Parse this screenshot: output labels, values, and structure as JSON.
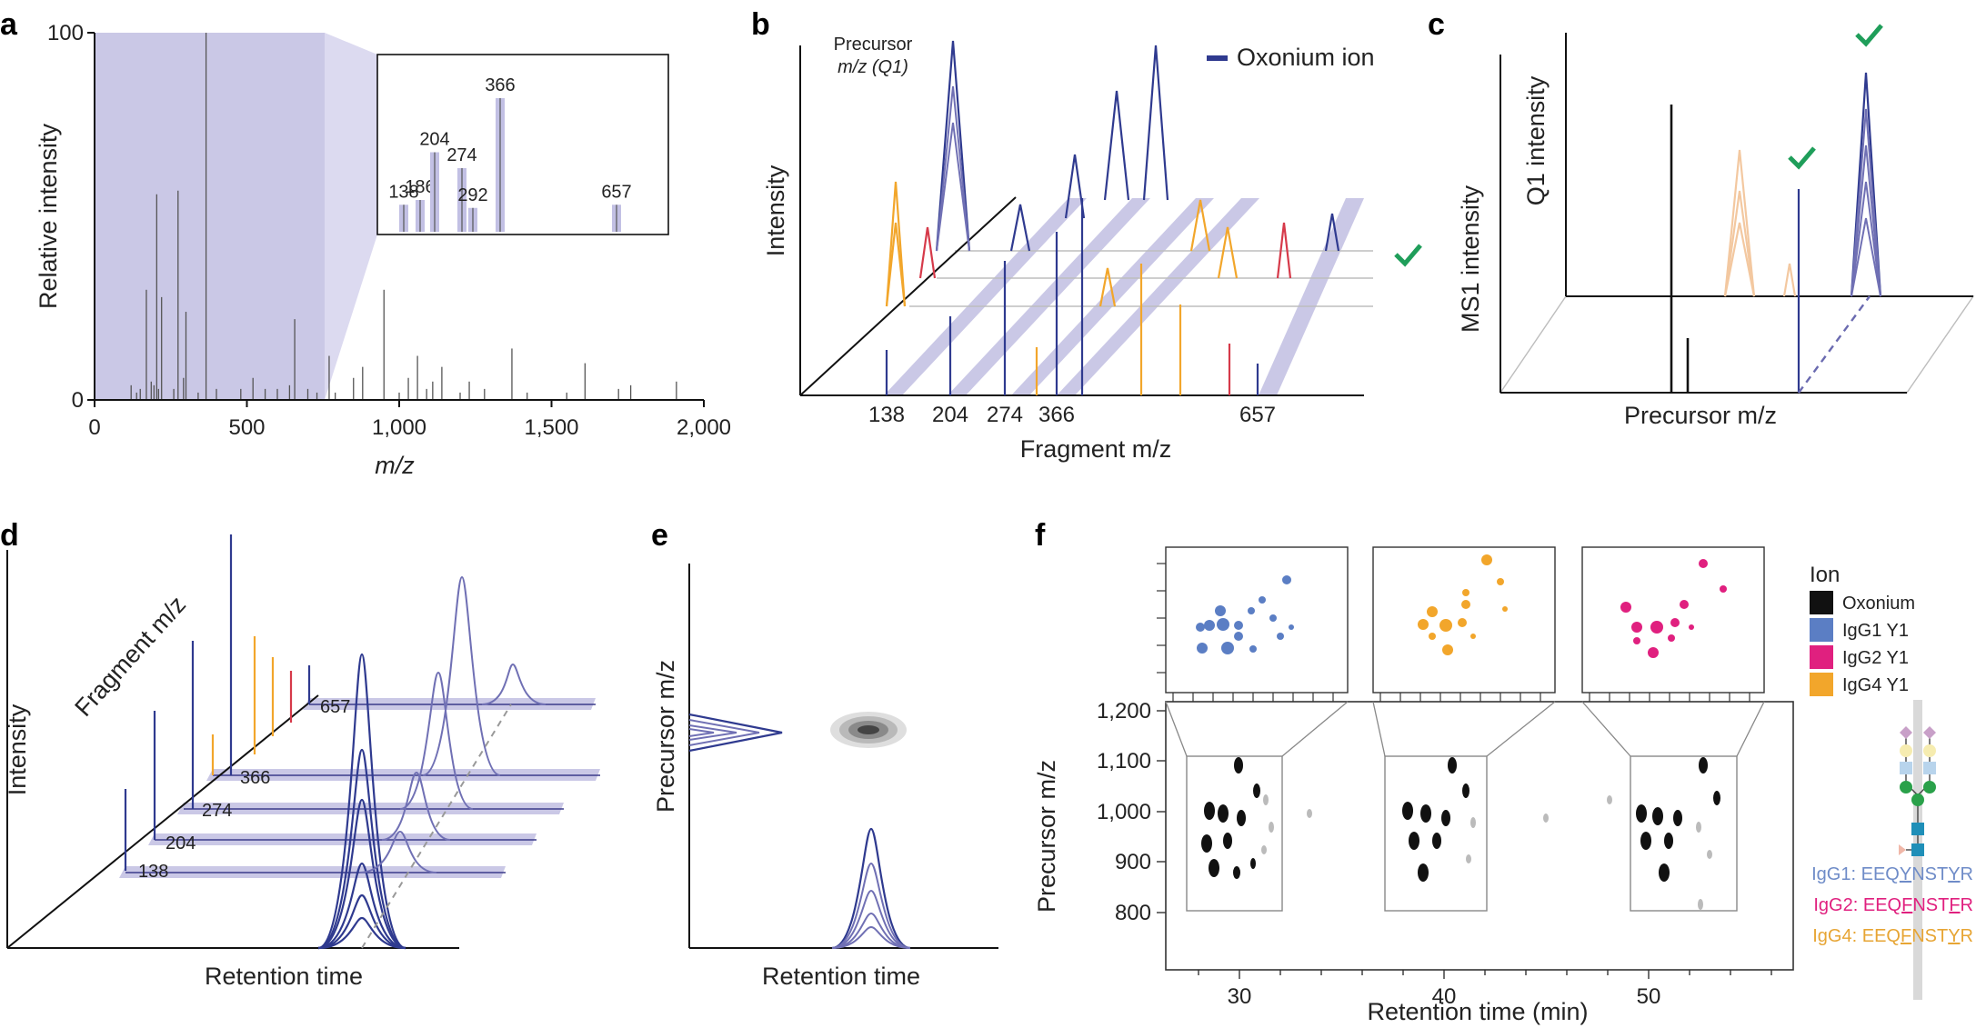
{
  "panels": [
    "a",
    "b",
    "c",
    "d",
    "e",
    "f"
  ],
  "panel_a": {
    "ylabel": "Relative intensity",
    "xlabel": "m/z",
    "x_ticks": [
      "0",
      "500",
      "1,000",
      "1,500",
      "2,000"
    ],
    "y_ticks": [
      "0",
      "100"
    ],
    "inset_labels": [
      "138",
      "186",
      "204",
      "274",
      "292",
      "366",
      "657"
    ]
  },
  "panel_b": {
    "zlabel_line1": "Precursor",
    "zlabel_line2": "m/z (Q1)",
    "ylabel": "Intensity",
    "xlabel": "Fragment m/z",
    "x_ticks": [
      "138",
      "204",
      "274",
      "366",
      "657"
    ],
    "legend": "Oxonium ion"
  },
  "panel_c": {
    "ylabel1": "Q1 intensity",
    "ylabel2": "MS1 intensity",
    "xlabel": "Precursor m/z"
  },
  "panel_d": {
    "ylabel": "Intensity",
    "zlabel": "Fragment m/z",
    "xlabel": "Retention time",
    "labels": [
      "138",
      "204",
      "274",
      "366",
      "657"
    ]
  },
  "panel_e": {
    "ylabel": "Precursor m/z",
    "xlabel": "Retention time"
  },
  "panel_f": {
    "ylabel": "Precursor m/z",
    "xlabel": "Retention time (min)",
    "y_ticks": [
      "1,200",
      "1,100",
      "1,000",
      "900",
      "800"
    ],
    "x_ticks": [
      "30",
      "40",
      "50"
    ],
    "legend_title": "Ion",
    "legend": [
      {
        "label": "Oxonium",
        "color": "#111111"
      },
      {
        "label": "IgG1 Y1",
        "color": "#5b7ec4"
      },
      {
        "label": "IgG2 Y1",
        "color": "#e0207f"
      },
      {
        "label": "IgG4 Y1",
        "color": "#f2a62b"
      }
    ],
    "peptides": [
      {
        "prefix": "IgG1: EEQ",
        "glyco": "Y",
        "mid": "N",
        "tail": "ST",
        "end": "Y",
        "last": "R",
        "color": "#6f8cc8"
      },
      {
        "prefix": "IgG2: EEQ",
        "glyco": "F",
        "mid": "N",
        "tail": "ST",
        "end": "F",
        "last": "R",
        "color": "#e0207f"
      },
      {
        "prefix": "IgG4: EEQ",
        "glyco": "F",
        "mid": "N",
        "tail": "ST",
        "end": "Y",
        "last": "R",
        "color": "#e7a534"
      }
    ]
  },
  "chart_data": [
    {
      "type": "bar",
      "panel": "a",
      "xlabel": "m/z",
      "ylabel": "Relative intensity",
      "xlim": [
        0,
        2000
      ],
      "ylim": [
        0,
        100
      ],
      "x": [
        120,
        138,
        150,
        170,
        186,
        195,
        204,
        210,
        220,
        260,
        274,
        292,
        300,
        340,
        366,
        400,
        480,
        520,
        560,
        600,
        640,
        657,
        700,
        730,
        770,
        790,
        850,
        880,
        950,
        1000,
        1030,
        1060,
        1090,
        1110,
        1140,
        1200,
        1230,
        1280,
        1370,
        1420,
        1550,
        1610,
        1720,
        1760,
        1910
      ],
      "values": [
        4,
        2,
        3,
        30,
        5,
        4,
        56,
        3,
        28,
        3,
        57,
        6,
        24,
        2,
        100,
        3,
        3,
        6,
        3,
        3,
        4,
        22,
        3,
        2,
        12,
        2,
        6,
        9,
        30,
        2,
        6,
        12,
        3,
        5,
        9,
        2,
        5,
        3,
        14,
        2,
        2,
        10,
        3,
        4,
        5
      ]
    },
    {
      "type": "bar",
      "panel": "a-inset",
      "categories": [
        "138",
        "186",
        "204",
        "274",
        "292",
        "366",
        "657"
      ],
      "values": [
        17,
        20,
        50,
        40,
        15,
        84,
        17
      ]
    }
  ]
}
